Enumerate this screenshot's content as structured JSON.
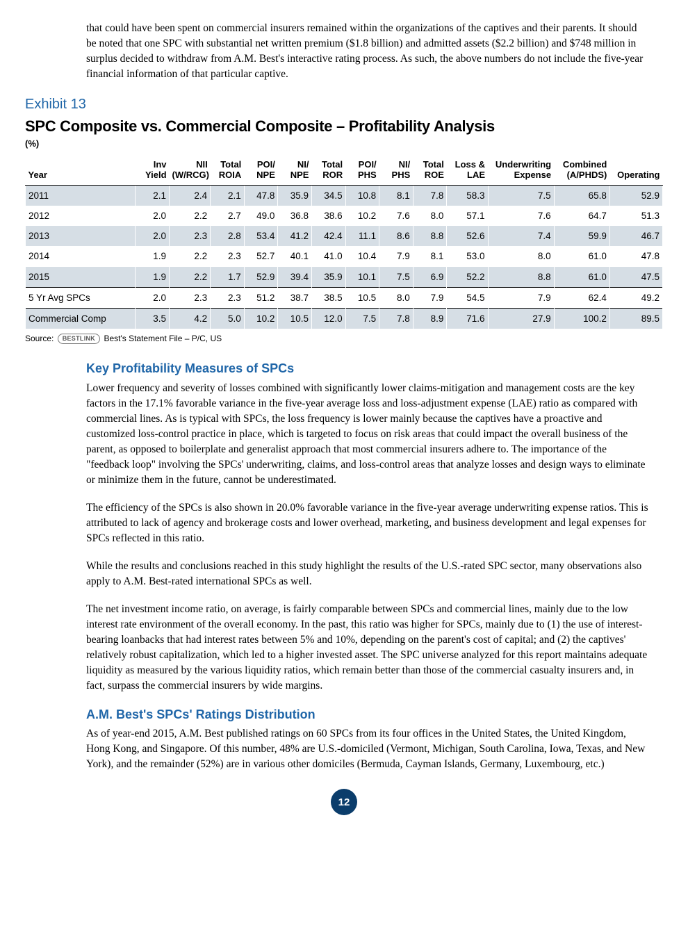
{
  "intro_paragraph": "that could have been spent on commercial insurers remained within the organizations of the captives and their parents. It should be noted that one SPC with substantial net written premium ($1.8 billion) and admitted assets ($2.2 billion) and $748 million in surplus decided to withdraw from A.M. Best's interactive rating process. As such, the above numbers do not include the five-year financial information of that particular captive.",
  "exhibit": {
    "label": "Exhibit 13",
    "title": "SPC Composite vs. Commercial Composite – Profitability Analysis",
    "unit": "(%)",
    "columns": [
      "Year",
      "Inv Yield",
      "NII (W/RCG)",
      "Total ROIA",
      "POI/ NPE",
      "NI/ NPE",
      "Total ROR",
      "POI/ PHS",
      "NI/ PHS",
      "Total ROE",
      "Loss & LAE",
      "Underwriting Expense",
      "Combined (A/PHDS)",
      "Operating"
    ],
    "col_widths": [
      "150",
      "46",
      "56",
      "46",
      "46",
      "46",
      "46",
      "46",
      "46",
      "46",
      "56",
      "90",
      "76",
      "72"
    ],
    "rows": [
      {
        "shade": true,
        "cells": [
          "2011",
          "2.1",
          "2.4",
          "2.1",
          "47.8",
          "35.9",
          "34.5",
          "10.8",
          "8.1",
          "7.8",
          "58.3",
          "7.5",
          "65.8",
          "52.9"
        ]
      },
      {
        "shade": false,
        "cells": [
          "2012",
          "2.0",
          "2.2",
          "2.7",
          "49.0",
          "36.8",
          "38.6",
          "10.2",
          "7.6",
          "8.0",
          "57.1",
          "7.6",
          "64.7",
          "51.3"
        ]
      },
      {
        "shade": true,
        "cells": [
          "2013",
          "2.0",
          "2.3",
          "2.8",
          "53.4",
          "41.2",
          "42.4",
          "11.1",
          "8.6",
          "8.8",
          "52.6",
          "7.4",
          "59.9",
          "46.7"
        ]
      },
      {
        "shade": false,
        "cells": [
          "2014",
          "1.9",
          "2.2",
          "2.3",
          "52.7",
          "40.1",
          "41.0",
          "10.4",
          "7.9",
          "8.1",
          "53.0",
          "8.0",
          "61.0",
          "47.8"
        ]
      },
      {
        "shade": true,
        "cells": [
          "2015",
          "1.9",
          "2.2",
          "1.7",
          "52.9",
          "39.4",
          "35.9",
          "10.1",
          "7.5",
          "6.9",
          "52.2",
          "8.8",
          "61.0",
          "47.5"
        ]
      },
      {
        "shade": false,
        "rule": true,
        "cells": [
          "5 Yr Avg SPCs",
          "2.0",
          "2.3",
          "2.3",
          "51.2",
          "38.7",
          "38.5",
          "10.5",
          "8.0",
          "7.9",
          "54.5",
          "7.9",
          "62.4",
          "49.2"
        ]
      },
      {
        "shade": true,
        "rule": true,
        "cells": [
          "Commercial Comp",
          "3.5",
          "4.2",
          "5.0",
          "10.2",
          "10.5",
          "12.0",
          "7.5",
          "7.8",
          "8.9",
          "71.6",
          "27.9",
          "100.2",
          "89.5"
        ]
      }
    ],
    "source_prefix": "Source:",
    "source_pill": "BESTLINK",
    "source_suffix": "Best's Statement File – P/C, US"
  },
  "section1": {
    "heading": "Key Profitability Measures of SPCs",
    "p1": "Lower frequency and severity of losses combined with significantly lower claims-mitigation and management costs are the key factors in the 17.1% favorable variance in the five-year average loss and loss-adjustment expense (LAE) ratio as compared with commercial lines. As is typical with SPCs, the loss frequency is lower mainly because the captives have a proactive and customized loss-control practice in place, which is targeted to focus on risk areas that could impact the overall business of the parent, as opposed to boilerplate and generalist approach that most commercial insurers adhere to.  The importance of the \"feedback loop\" involving the SPCs' underwriting, claims, and loss-control areas that analyze losses and design ways to eliminate or minimize them in the future, cannot be underestimated.",
    "p2": "The efficiency of the SPCs is also shown in 20.0% favorable variance in the five-year average underwriting expense ratios. This is attributed to lack of agency and brokerage costs and lower overhead, marketing, and business development and legal expenses for SPCs reflected in this ratio.",
    "p3": "While the results and conclusions reached in this study highlight the results of the U.S.-rated SPC sector, many observations also apply to A.M. Best-rated international SPCs as well.",
    "p4": "The net investment income ratio, on average, is fairly comparable between SPCs and commercial lines, mainly due to the low interest rate environment of the overall economy. In the past, this ratio was higher for SPCs, mainly due to (1) the use of interest-bearing loanbacks that had interest rates between 5% and 10%, depending on the parent's cost of capital; and (2) the captives' relatively robust capitalization, which led to a higher invested asset. The SPC universe analyzed for this report maintains adequate liquidity as measured by the various liquidity ratios, which remain better than those of the commercial casualty insurers and, in fact, surpass the commercial insurers by wide margins."
  },
  "section2": {
    "heading": "A.M. Best's SPCs' Ratings Distribution",
    "p1": "As of year-end 2015, A.M. Best published ratings on 60 SPCs from its four offices in the United States, the United Kingdom, Hong Kong, and Singapore. Of this number, 48% are U.S.-domiciled (Vermont, Michigan, South Carolina, Iowa, Texas, and New York), and the remainder (52%) are in various other domiciles (Bermuda, Cayman Islands, Germany, Luxembourg, etc.)"
  },
  "page_number": "12",
  "colors": {
    "heading_blue": "#2066a8",
    "shade_bg": "#d6dee5",
    "badge_bg": "#0b3d6b"
  }
}
